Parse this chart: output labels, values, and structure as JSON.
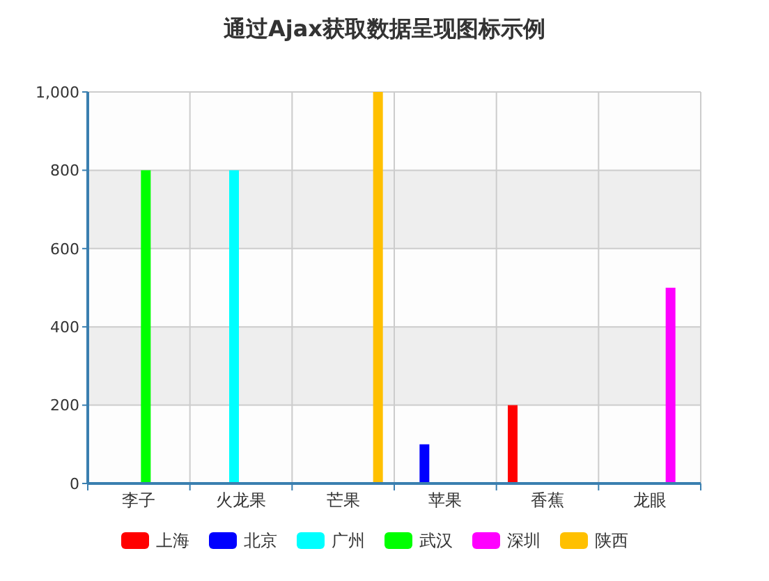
{
  "chart_data": {
    "type": "bar",
    "title": "通过Ajax获取数据呈现图标示例",
    "categories": [
      "李子",
      "火龙果",
      "芒果",
      "苹果",
      "香蕉",
      "龙眼"
    ],
    "series": [
      {
        "name": "上海",
        "color": "#ff0000",
        "values": [
          null,
          null,
          null,
          null,
          200,
          null
        ]
      },
      {
        "name": "北京",
        "color": "#0000ff",
        "values": [
          null,
          null,
          null,
          100,
          null,
          null
        ]
      },
      {
        "name": "广州",
        "color": "#00ffff",
        "values": [
          null,
          800,
          null,
          null,
          null,
          null
        ]
      },
      {
        "name": "武汉",
        "color": "#00ff00",
        "values": [
          800,
          null,
          null,
          null,
          null,
          null
        ]
      },
      {
        "name": "深圳",
        "color": "#ff00ff",
        "values": [
          null,
          null,
          null,
          null,
          null,
          500
        ]
      },
      {
        "name": "陕西",
        "color": "#ffc000",
        "values": [
          null,
          null,
          1000,
          null,
          null,
          null
        ]
      }
    ],
    "ylim": [
      0,
      1000
    ],
    "yticks": [
      0,
      200,
      400,
      600,
      800,
      {
        "value": 1000,
        "label": "1,000"
      }
    ],
    "grid": true,
    "legend": "bottom"
  }
}
